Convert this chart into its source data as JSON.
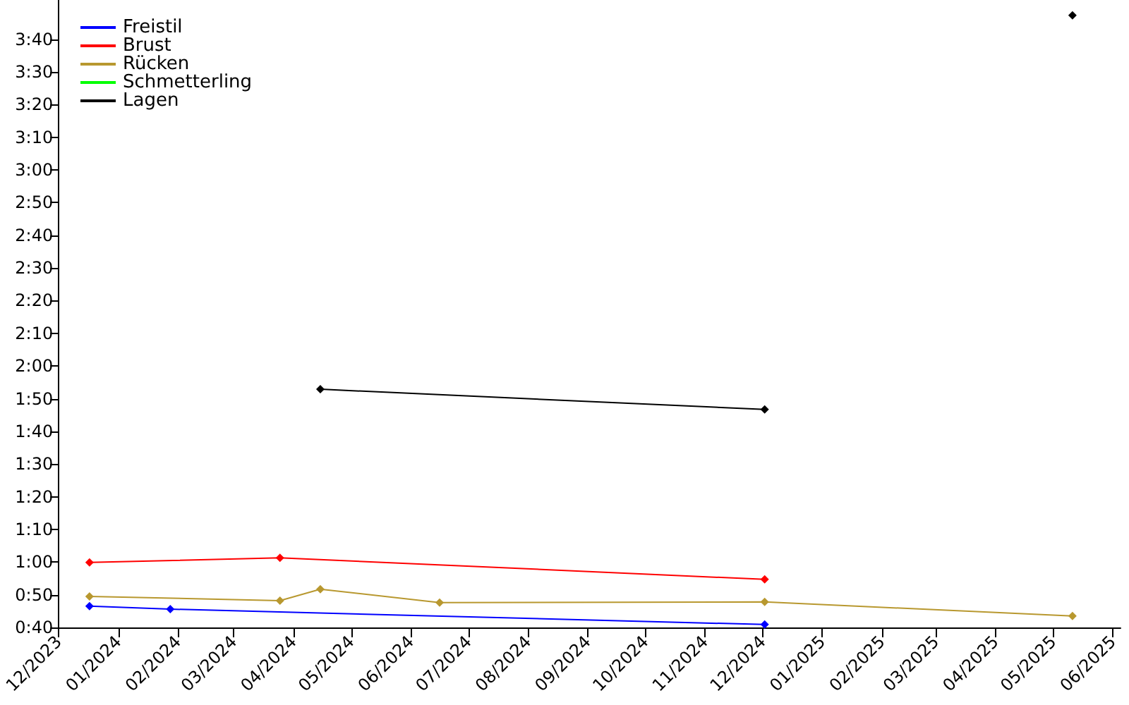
{
  "chart_data": {
    "type": "line",
    "marker": "diamond",
    "grid": false,
    "legend": "top left",
    "xlim": [
      "2023-12-01",
      "2025-06-05"
    ],
    "xticks": [
      {
        "value": "2023-12-01",
        "label": "12/2023"
      },
      {
        "value": "2024-01-01",
        "label": "01/2024"
      },
      {
        "value": "2024-02-01",
        "label": "02/2024"
      },
      {
        "value": "2024-03-01",
        "label": "03/2024"
      },
      {
        "value": "2024-04-01",
        "label": "04/2024"
      },
      {
        "value": "2024-05-01",
        "label": "05/2024"
      },
      {
        "value": "2024-06-01",
        "label": "06/2024"
      },
      {
        "value": "2024-07-01",
        "label": "07/2024"
      },
      {
        "value": "2024-08-01",
        "label": "08/2024"
      },
      {
        "value": "2024-09-01",
        "label": "09/2024"
      },
      {
        "value": "2024-10-01",
        "label": "10/2024"
      },
      {
        "value": "2024-11-01",
        "label": "11/2024"
      },
      {
        "value": "2024-12-01",
        "label": "12/2024"
      },
      {
        "value": "2025-01-01",
        "label": "01/2025"
      },
      {
        "value": "2025-02-01",
        "label": "02/2025"
      },
      {
        "value": "2025-03-01",
        "label": "03/2025"
      },
      {
        "value": "2025-04-01",
        "label": "04/2025"
      },
      {
        "value": "2025-05-01",
        "label": "05/2025"
      },
      {
        "value": "2025-06-01",
        "label": "06/2025"
      }
    ],
    "ylim": [
      40,
      232
    ],
    "yticks": [
      {
        "value": 40,
        "label": "0:40"
      },
      {
        "value": 50,
        "label": "0:50"
      },
      {
        "value": 60,
        "label": "1:00"
      },
      {
        "value": 70,
        "label": "1:10"
      },
      {
        "value": 80,
        "label": "1:20"
      },
      {
        "value": 90,
        "label": "1:30"
      },
      {
        "value": 100,
        "label": "1:40"
      },
      {
        "value": 110,
        "label": "1:50"
      },
      {
        "value": 120,
        "label": "2:00"
      },
      {
        "value": 130,
        "label": "2:10"
      },
      {
        "value": 140,
        "label": "2:20"
      },
      {
        "value": 150,
        "label": "2:30"
      },
      {
        "value": 160,
        "label": "2:40"
      },
      {
        "value": 170,
        "label": "2:50"
      },
      {
        "value": 180,
        "label": "3:00"
      },
      {
        "value": 190,
        "label": "3:10"
      },
      {
        "value": 200,
        "label": "3:20"
      },
      {
        "value": 210,
        "label": "3:30"
      },
      {
        "value": 220,
        "label": "3:40"
      }
    ],
    "series": [
      {
        "name": "Freistil",
        "color": "#0000ff",
        "x": [
          "2023-12-17",
          "2024-01-28",
          "2024-12-02"
        ],
        "values": [
          46.5,
          45.6,
          40.9
        ]
      },
      {
        "name": "Brust",
        "color": "#ff0000",
        "x": [
          "2023-12-17",
          "2024-03-25",
          "2024-12-02"
        ],
        "values": [
          59.9,
          61.3,
          54.7
        ]
      },
      {
        "name": "Rücken",
        "color": "#b8982f",
        "x": [
          "2023-12-17",
          "2024-03-25",
          "2024-04-15",
          "2024-06-16",
          "2024-12-02",
          "2025-05-11"
        ],
        "values": [
          49.5,
          48.2,
          51.7,
          47.6,
          47.8,
          43.5
        ]
      },
      {
        "name": "Schmetterling",
        "color": "#00ff00"
      },
      {
        "name": "Lagen",
        "color": "#000000",
        "x": [
          "2024-04-15",
          "2024-12-02"
        ],
        "values": [
          112.9,
          106.7
        ]
      },
      {
        "color": "#000000",
        "x": [
          "2025-05-11"
        ],
        "values": [
          227.3
        ]
      }
    ]
  }
}
